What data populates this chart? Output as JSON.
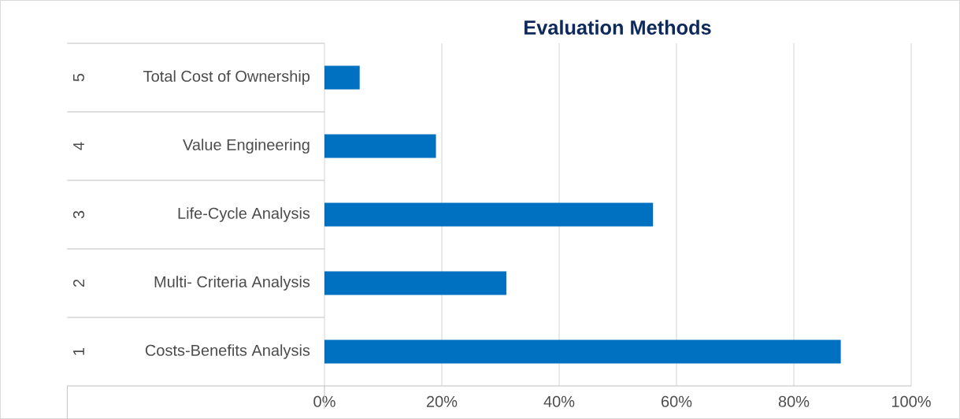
{
  "chart_data": {
    "type": "bar",
    "orientation": "horizontal",
    "title": "Evaluation Methods",
    "categories": [
      "Total Cost of Ownership",
      "Value Engineering",
      "Life-Cycle Analysis",
      "Multi- Criteria Analysis",
      "Costs-Benefits Analysis"
    ],
    "annotations": [
      "5",
      "4",
      "3",
      "2",
      "1"
    ],
    "values": [
      6,
      19,
      56,
      31,
      88
    ],
    "color": "#0070c0",
    "xlim": [
      0,
      100
    ],
    "xticks": [
      {
        "value": 0,
        "label": "0%"
      },
      {
        "value": 20,
        "label": "20%"
      },
      {
        "value": 40,
        "label": "40%"
      },
      {
        "value": 60,
        "label": "60%"
      },
      {
        "value": 80,
        "label": "80%"
      },
      {
        "value": 100,
        "label": "100%"
      }
    ],
    "grid": "x"
  }
}
